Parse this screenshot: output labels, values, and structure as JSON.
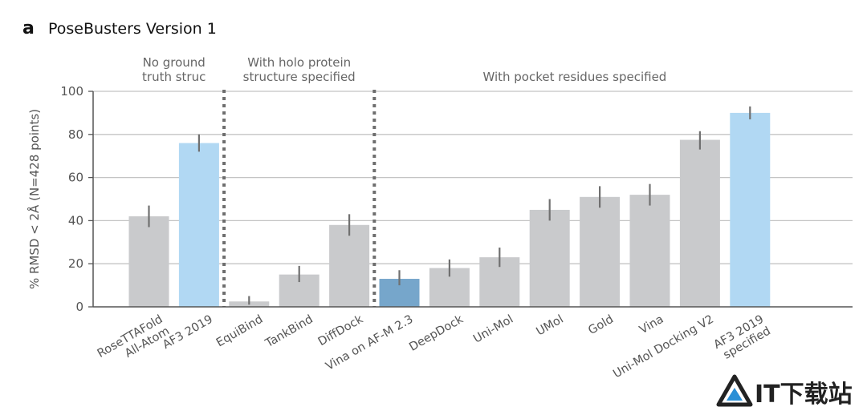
{
  "panel_letter": "a",
  "chart_data": {
    "type": "bar",
    "title": "PoseBusters Version 1",
    "ylabel": "% RMSD < 2Å (N=428 points)",
    "xlabel": "",
    "ylim": [
      0,
      100
    ],
    "yticks": [
      0,
      20,
      40,
      60,
      80,
      100
    ],
    "grid": true,
    "groups": [
      {
        "label_lines": [
          "No ground",
          "truth struc"
        ],
        "start": 0,
        "end": 1
      },
      {
        "label_lines": [
          "With holo protein",
          "structure specified"
        ],
        "start": 2,
        "end": 4
      },
      {
        "label_lines": [
          "With pocket residues specified"
        ],
        "start": 5,
        "end": 12
      }
    ],
    "bars": [
      {
        "label_lines": [
          "RoseTTAFold",
          "All-Atom"
        ],
        "value": 42,
        "err": [
          37,
          47
        ],
        "color": "#c9cacc"
      },
      {
        "label_lines": [
          "AF3 2019"
        ],
        "value": 76,
        "err": [
          72,
          80
        ],
        "color": "#b1d8f3"
      },
      {
        "label_lines": [
          "EquiBind"
        ],
        "value": 2.5,
        "err": [
          1,
          5
        ],
        "color": "#c9cacc"
      },
      {
        "label_lines": [
          "TankBind"
        ],
        "value": 15,
        "err": [
          11.5,
          19
        ],
        "color": "#c9cacc"
      },
      {
        "label_lines": [
          "DiffDock"
        ],
        "value": 38,
        "err": [
          33,
          43
        ],
        "color": "#c9cacc"
      },
      {
        "label_lines": [
          "Vina on AF-M 2.3"
        ],
        "value": 13,
        "err": [
          10,
          17
        ],
        "color": "#76a6cb"
      },
      {
        "label_lines": [
          "DeepDock"
        ],
        "value": 18,
        "err": [
          14,
          22
        ],
        "color": "#c9cacc"
      },
      {
        "label_lines": [
          "Uni-Mol"
        ],
        "value": 23,
        "err": [
          18.5,
          27.5
        ],
        "color": "#c9cacc"
      },
      {
        "label_lines": [
          "UMol"
        ],
        "value": 45,
        "err": [
          40,
          50
        ],
        "color": "#c9cacc"
      },
      {
        "label_lines": [
          "Gold"
        ],
        "value": 51,
        "err": [
          46,
          56
        ],
        "color": "#c9cacc"
      },
      {
        "label_lines": [
          "Vina"
        ],
        "value": 52,
        "err": [
          47,
          57
        ],
        "color": "#c9cacc"
      },
      {
        "label_lines": [
          "Uni-Mol Docking V2"
        ],
        "value": 77.5,
        "err": [
          73,
          81.5
        ],
        "color": "#c9cacc"
      },
      {
        "label_lines": [
          "AF3 2019",
          "specified"
        ],
        "value": 90,
        "err": [
          87,
          93
        ],
        "color": "#b1d8f3"
      }
    ]
  },
  "watermark": {
    "text": "IT下载站"
  }
}
